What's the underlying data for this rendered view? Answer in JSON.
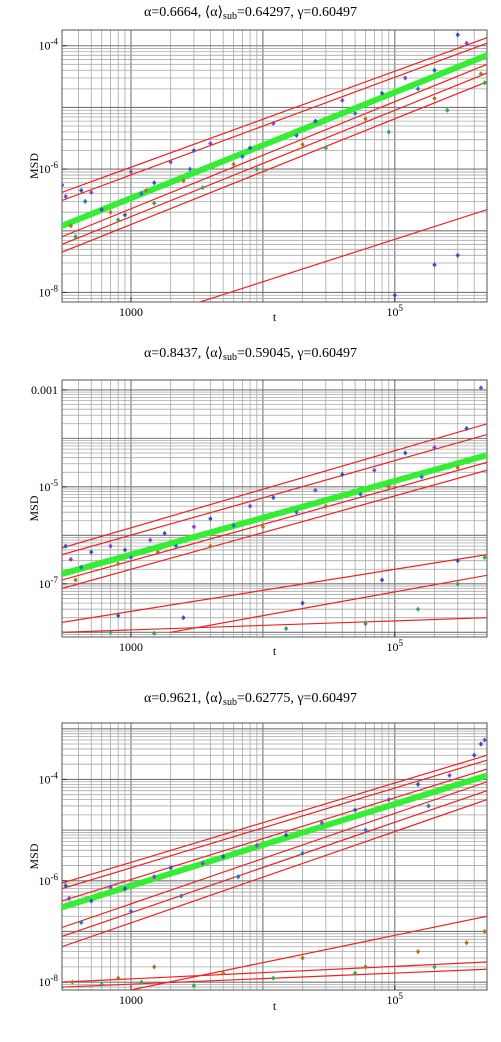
{
  "chart_data": [
    {
      "type": "scatter",
      "title": {
        "alpha": "0.6664",
        "alpha_sub": "0.64297",
        "gamma": "0.60497"
      },
      "xlabel": "t",
      "ylabel": "MSD",
      "x_scale": "log",
      "y_scale": "log",
      "xlim": [
        300,
        500000
      ],
      "ylim": [
        7e-09,
        0.00018
      ],
      "grid": true,
      "x_ticks": [
        {
          "value": 1000,
          "label": "1000"
        },
        {
          "value": 100000,
          "label": "10^5"
        }
      ],
      "y_ticks": [
        {
          "value": 1e-08,
          "label": "10^-8"
        },
        {
          "value": 1e-06,
          "label": "10^-6"
        },
        {
          "value": 0.0001,
          "label": "10^-4"
        }
      ],
      "ensemble_fit": {
        "color": "#33ee33",
        "points": [
          [
            300,
            1.2e-07
          ],
          [
            500000,
            7e-05
          ]
        ]
      },
      "fit_lines": [
        {
          "color": "#ee2222",
          "points": [
            [
              300,
              3.1e-07
            ],
            [
              500000,
              0.00011
            ]
          ]
        },
        {
          "color": "#ee2222",
          "points": [
            [
              300,
              4.2e-07
            ],
            [
              500000,
              0.000135
            ]
          ]
        },
        {
          "color": "#ee2222",
          "points": [
            [
              300,
              8e-08
            ],
            [
              500000,
              5e-05
            ]
          ]
        },
        {
          "color": "#ee2222",
          "points": [
            [
              300,
              6e-08
            ],
            [
              500000,
              3.6e-05
            ]
          ]
        },
        {
          "color": "#ee2222",
          "points": [
            [
              300,
              4.5e-08
            ],
            [
              500000,
              2.6e-05
            ]
          ]
        },
        {
          "color": "#ee2222",
          "points": [
            [
              3000,
              6.5e-09
            ],
            [
              500000,
              2.2e-07
            ]
          ]
        }
      ],
      "series": [
        {
          "color": "#3355bb",
          "points": [
            [
              300,
              5.5e-07
            ],
            [
              420,
              4.5e-07
            ],
            [
              600,
              2.2e-07
            ],
            [
              900,
              1.8e-07
            ],
            [
              1500,
              6e-07
            ],
            [
              3000,
              2e-06
            ],
            [
              8000,
              2.2e-06
            ],
            [
              25000,
              6e-06
            ],
            [
              80000,
              1.7e-05
            ],
            [
              200000,
              4e-05
            ],
            [
              300000,
              0.00015
            ],
            [
              100000,
              9e-09
            ],
            [
              200000,
              2.8e-08
            ],
            [
              300000,
              4e-08
            ]
          ]
        },
        {
          "color": "#8844cc",
          "points": [
            [
              320,
              3.6e-07
            ],
            [
              500,
              4.2e-07
            ],
            [
              1000,
              9e-07
            ],
            [
              2000,
              1.3e-06
            ],
            [
              4000,
              2.6e-06
            ],
            [
              12000,
              5.5e-06
            ],
            [
              40000,
              1.3e-05
            ],
            [
              120000,
              3e-05
            ],
            [
              350000,
              0.00011
            ],
            [
              450000,
              0.0002
            ]
          ]
        },
        {
          "color": "#aa7722",
          "points": [
            [
              350,
              1.2e-07
            ],
            [
              700,
              2e-07
            ],
            [
              1300,
              4.5e-07
            ],
            [
              2500,
              6.5e-07
            ],
            [
              6000,
              1.2e-06
            ],
            [
              20000,
              2.5e-06
            ],
            [
              60000,
              6.5e-06
            ],
            [
              200000,
              1.4e-05
            ],
            [
              450000,
              3.5e-05
            ]
          ]
        },
        {
          "color": "#33aa55",
          "points": [
            [
              380,
              8e-08
            ],
            [
              800,
              1.5e-07
            ],
            [
              1500,
              2.8e-07
            ],
            [
              3500,
              5e-07
            ],
            [
              9000,
              1e-06
            ],
            [
              30000,
              2.2e-06
            ],
            [
              90000,
              4e-06
            ],
            [
              250000,
              9e-06
            ],
            [
              480000,
              2.5e-05
            ]
          ]
        },
        {
          "color": "#2277cc",
          "points": [
            [
              450,
              3e-07
            ],
            [
              1200,
              4e-07
            ],
            [
              2800,
              1e-06
            ],
            [
              7000,
              1.6e-06
            ],
            [
              18000,
              3.5e-06
            ],
            [
              50000,
              8e-06
            ],
            [
              150000,
              2e-05
            ]
          ]
        }
      ]
    },
    {
      "type": "scatter",
      "title": {
        "alpha": "0.8437",
        "alpha_sub": "0.59045",
        "gamma": "0.60497"
      },
      "xlabel": "t",
      "ylabel": "MSD",
      "x_scale": "log",
      "y_scale": "log",
      "xlim": [
        300,
        500000
      ],
      "ylim": [
        8e-09,
        0.0016
      ],
      "grid": true,
      "x_ticks": [
        {
          "value": 1000,
          "label": "1000"
        },
        {
          "value": 100000,
          "label": "10^5"
        }
      ],
      "y_ticks": [
        {
          "value": 1e-07,
          "label": "10^-7"
        },
        {
          "value": 1e-05,
          "label": "10^-5"
        },
        {
          "value": 0.001,
          "label": "0.001"
        }
      ],
      "ensemble_fit": {
        "color": "#33ee33",
        "points": [
          [
            300,
            1.6e-07
          ],
          [
            500000,
            4.5e-05
          ]
        ]
      },
      "fit_lines": [
        {
          "color": "#ee2222",
          "points": [
            [
              300,
              5.5e-07
            ],
            [
              500000,
              0.0002
            ]
          ]
        },
        {
          "color": "#ee2222",
          "points": [
            [
              300,
              4e-07
            ],
            [
              500000,
              0.00012
            ]
          ]
        },
        {
          "color": "#ee2222",
          "points": [
            [
              300,
              1.2e-07
            ],
            [
              500000,
              3.2e-05
            ]
          ]
        },
        {
          "color": "#ee2222",
          "points": [
            [
              300,
              8e-08
            ],
            [
              500000,
              2.2e-05
            ]
          ]
        },
        {
          "color": "#ee2222",
          "points": [
            [
              300,
              1.6e-08
            ],
            [
              500000,
              4e-07
            ]
          ]
        },
        {
          "color": "#ee2222",
          "points": [
            [
              2000,
              1e-08
            ],
            [
              500000,
              1.5e-07
            ]
          ]
        },
        {
          "color": "#ee2222",
          "points": [
            [
              300,
              1e-08
            ],
            [
              500000,
              2e-08
            ]
          ]
        }
      ],
      "series": [
        {
          "color": "#3355bb",
          "points": [
            [
              320,
              6e-07
            ],
            [
              500,
              4.5e-07
            ],
            [
              900,
              5e-07
            ],
            [
              1800,
              1.1e-06
            ],
            [
              4000,
              2.2e-06
            ],
            [
              12000,
              6e-06
            ],
            [
              40000,
              1.8e-05
            ],
            [
              120000,
              5e-05
            ],
            [
              350000,
              0.00016
            ],
            [
              800,
              2.2e-08
            ],
            [
              2500,
              2e-08
            ],
            [
              20000,
              4e-08
            ],
            [
              80000,
              1.2e-07
            ],
            [
              300000,
              3e-07
            ]
          ]
        },
        {
          "color": "#8844cc",
          "points": [
            [
              350,
              3.2e-07
            ],
            [
              700,
              6e-07
            ],
            [
              1400,
              8e-07
            ],
            [
              3000,
              1.5e-06
            ],
            [
              8000,
              4e-06
            ],
            [
              25000,
              8.5e-06
            ],
            [
              70000,
              2.2e-05
            ],
            [
              200000,
              6.5e-05
            ],
            [
              450000,
              0.0011
            ]
          ]
        },
        {
          "color": "#aa7722",
          "points": [
            [
              380,
              1.2e-07
            ],
            [
              800,
              2.6e-07
            ],
            [
              1600,
              4.5e-07
            ],
            [
              4000,
              6e-07
            ],
            [
              10000,
              1.5e-06
            ],
            [
              30000,
              4e-06
            ],
            [
              90000,
              1e-05
            ],
            [
              300000,
              2.5e-05
            ]
          ]
        },
        {
          "color": "#33aa55",
          "points": [
            [
              300,
              1e-08
            ],
            [
              700,
              1e-08
            ],
            [
              1500,
              9.5e-09
            ],
            [
              15000,
              1.2e-08
            ],
            [
              60000,
              1.5e-08
            ],
            [
              150000,
              3e-08
            ],
            [
              300000,
              1e-07
            ],
            [
              480000,
              3.5e-07
            ]
          ]
        },
        {
          "color": "#2277cc",
          "points": [
            [
              420,
              2.2e-07
            ],
            [
              1000,
              3.5e-07
            ],
            [
              2200,
              6e-07
            ],
            [
              6000,
              1.6e-06
            ],
            [
              18000,
              3e-06
            ],
            [
              55000,
              7e-06
            ],
            [
              160000,
              1.6e-05
            ]
          ]
        }
      ]
    },
    {
      "type": "scatter",
      "title": {
        "alpha": "0.9621",
        "alpha_sub": "0.62775",
        "gamma": "0.60497"
      },
      "xlabel": "t",
      "ylabel": "MSD",
      "x_scale": "log",
      "y_scale": "log",
      "xlim": [
        300,
        500000
      ],
      "ylim": [
        7e-09,
        0.0013
      ],
      "grid": true,
      "x_ticks": [
        {
          "value": 1000,
          "label": "1000"
        },
        {
          "value": 100000,
          "label": "10^5"
        }
      ],
      "y_ticks": [
        {
          "value": 1e-08,
          "label": "10^-8"
        },
        {
          "value": 1e-06,
          "label": "10^-6"
        },
        {
          "value": 0.0001,
          "label": "10^-4"
        }
      ],
      "ensemble_fit": {
        "color": "#33ee33",
        "points": [
          [
            300,
            3e-07
          ],
          [
            500000,
            0.00012
          ]
        ]
      },
      "fit_lines": [
        {
          "color": "#ee2222",
          "points": [
            [
              300,
              9e-07
            ],
            [
              500000,
              0.0003
            ]
          ]
        },
        {
          "color": "#ee2222",
          "points": [
            [
              300,
              7e-07
            ],
            [
              500000,
              0.00024
            ]
          ]
        },
        {
          "color": "#ee2222",
          "points": [
            [
              300,
              4e-07
            ],
            [
              500000,
              0.00016
            ]
          ]
        },
        {
          "color": "#ee2222",
          "points": [
            [
              300,
              1.2e-07
            ],
            [
              500000,
              9e-05
            ]
          ]
        },
        {
          "color": "#ee2222",
          "points": [
            [
              300,
              8e-08
            ],
            [
              500000,
              6e-05
            ]
          ]
        },
        {
          "color": "#ee2222",
          "points": [
            [
              300,
              5e-08
            ],
            [
              500000,
              4e-05
            ]
          ]
        },
        {
          "color": "#ee2222",
          "points": [
            [
              1000,
              7e-09
            ],
            [
              500000,
              2e-07
            ]
          ]
        },
        {
          "color": "#ee2222",
          "points": [
            [
              300,
              1e-08
            ],
            [
              500000,
              2.5e-08
            ]
          ]
        },
        {
          "color": "#ee2222",
          "points": [
            [
              300,
              8e-09
            ],
            [
              500000,
              1.8e-08
            ]
          ]
        }
      ],
      "series": [
        {
          "color": "#3355bb",
          "points": [
            [
              320,
              8e-07
            ],
            [
              500,
              4e-07
            ],
            [
              900,
              7e-07
            ],
            [
              2000,
              1.8e-06
            ],
            [
              5000,
              3e-06
            ],
            [
              15000,
              8e-06
            ],
            [
              50000,
              2.5e-05
            ],
            [
              150000,
              8e-05
            ],
            [
              400000,
              0.0003
            ],
            [
              450000,
              0.0005
            ]
          ]
        },
        {
          "color": "#8844cc",
          "points": [
            [
              340,
              4.5e-07
            ],
            [
              700,
              7.5e-07
            ],
            [
              1500,
              1.2e-06
            ],
            [
              3500,
              2.2e-06
            ],
            [
              9000,
              5e-06
            ],
            [
              28000,
              1.4e-05
            ],
            [
              90000,
              4e-05
            ],
            [
              260000,
              0.00012
            ],
            [
              480000,
              0.0006
            ]
          ]
        },
        {
          "color": "#aa7722",
          "points": [
            [
              360,
              1e-08
            ],
            [
              800,
              1.2e-08
            ],
            [
              1500,
              2e-08
            ],
            [
              5000,
              1.5e-08
            ],
            [
              20000,
              3e-08
            ],
            [
              60000,
              2e-08
            ],
            [
              150000,
              4e-08
            ],
            [
              350000,
              6e-08
            ],
            [
              480000,
              1e-07
            ]
          ]
        },
        {
          "color": "#33aa55",
          "points": [
            [
              300,
              8e-09
            ],
            [
              600,
              9e-09
            ],
            [
              1200,
              1e-08
            ],
            [
              3000,
              8.5e-09
            ],
            [
              12000,
              1.2e-08
            ],
            [
              50000,
              1.5e-08
            ],
            [
              200000,
              2e-08
            ]
          ]
        },
        {
          "color": "#2277cc",
          "points": [
            [
              420,
              1.5e-07
            ],
            [
              1000,
              2.5e-07
            ],
            [
              2400,
              5e-07
            ],
            [
              6500,
              1.2e-06
            ],
            [
              20000,
              3.5e-06
            ],
            [
              60000,
              1e-05
            ],
            [
              180000,
              3e-05
            ]
          ]
        }
      ]
    }
  ]
}
